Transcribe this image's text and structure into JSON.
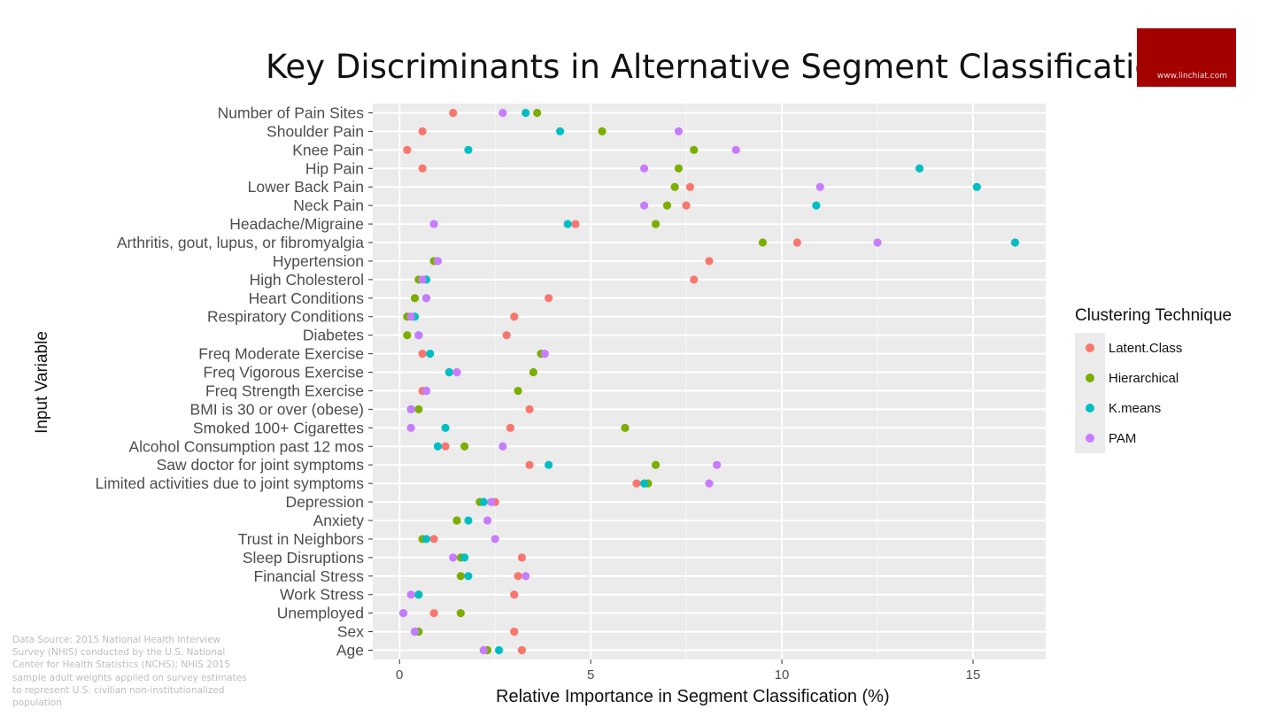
{
  "title": "Key Discriminants in Alternative Segment Classifications",
  "logo": {
    "text": "www.linchiat.com",
    "color": "#a30000"
  },
  "source_note": "Data Source: 2015 National Health Interview Survey (NHIS) conducted by the U.S. National Center for Health Statistics (NCHS); NHIS 2015 sample adult weights applied on survey estimates to represent  U.S. civilian non-institutionalized population",
  "legend": {
    "title": "Clustering Technique",
    "items": [
      {
        "label": "Latent.Class",
        "color": "#F8766D"
      },
      {
        "label": "Hierarchical",
        "color": "#7CAE00"
      },
      {
        "label": "K.means",
        "color": "#00BFC4"
      },
      {
        "label": "PAM",
        "color": "#C77CFF"
      }
    ]
  },
  "chart_data": {
    "type": "scatter",
    "title": "Key Discriminants in Alternative Segment Classifications",
    "xlabel": "Relative Importance in Segment Classification (%)",
    "ylabel": "Input Variable",
    "xlim": [
      -0.7,
      16.9
    ],
    "xticks": [
      0,
      5,
      10,
      15
    ],
    "grid": true,
    "legend_position": "right",
    "categories": [
      "Number of Pain Sites",
      "Shoulder Pain",
      "Knee Pain",
      "Hip Pain",
      "Lower Back Pain",
      "Neck Pain",
      "Headache/Migraine",
      "Arthritis, gout, lupus, or fibromyalgia",
      "Hypertension",
      "High Cholesterol",
      "Heart Conditions",
      "Respiratory Conditions",
      "Diabetes",
      "Freq Moderate Exercise",
      "Freq Vigorous Exercise",
      "Freq Strength Exercise",
      "BMI is 30 or over (obese)",
      "Smoked 100+ Cigarettes",
      "Alcohol Consumption past 12 mos",
      "Saw doctor for joint symptoms",
      "Limited activities due to joint symptoms",
      "Depression",
      "Anxiety",
      "Trust in Neighbors",
      "Sleep Disruptions",
      "Financial Stress",
      "Work Stress",
      "Unemployed",
      "Sex",
      "Age"
    ],
    "series": [
      {
        "name": "Latent.Class",
        "color": "#F8766D",
        "values": [
          1.4,
          0.6,
          0.2,
          0.6,
          7.6,
          7.5,
          4.6,
          10.4,
          8.1,
          7.7,
          3.9,
          3.0,
          2.8,
          0.6,
          1.3,
          0.6,
          3.4,
          2.9,
          1.2,
          3.4,
          6.2,
          2.5,
          1.5,
          0.9,
          3.2,
          3.1,
          3.0,
          0.9,
          3.0,
          3.2
        ]
      },
      {
        "name": "Hierarchical",
        "color": "#7CAE00",
        "values": [
          3.6,
          5.3,
          7.7,
          7.3,
          7.2,
          7.0,
          6.7,
          9.5,
          0.9,
          0.5,
          0.4,
          0.2,
          0.2,
          3.7,
          3.5,
          3.1,
          0.5,
          5.9,
          1.7,
          6.7,
          6.5,
          2.1,
          1.5,
          0.6,
          1.6,
          1.6,
          0.5,
          1.6,
          0.5,
          2.3
        ]
      },
      {
        "name": "K.means",
        "color": "#00BFC4",
        "values": [
          3.3,
          4.2,
          1.8,
          13.6,
          15.1,
          10.9,
          4.4,
          16.1,
          1.0,
          0.7,
          0.7,
          0.4,
          0.5,
          0.8,
          1.3,
          0.7,
          0.3,
          1.2,
          1.0,
          3.9,
          6.4,
          2.2,
          1.8,
          0.7,
          1.7,
          1.8,
          0.5,
          0.1,
          0.4,
          2.6
        ]
      },
      {
        "name": "PAM",
        "color": "#C77CFF",
        "values": [
          2.7,
          7.3,
          8.8,
          6.4,
          11.0,
          6.4,
          0.9,
          12.5,
          1.0,
          0.6,
          0.7,
          0.3,
          0.5,
          3.8,
          1.5,
          0.7,
          0.3,
          0.3,
          2.7,
          8.3,
          8.1,
          2.4,
          2.3,
          2.5,
          1.4,
          3.3,
          0.3,
          0.1,
          0.4,
          2.2
        ]
      }
    ]
  }
}
